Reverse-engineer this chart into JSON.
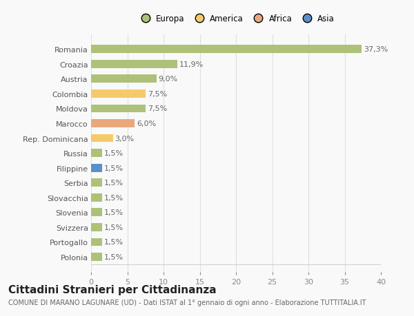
{
  "categories": [
    "Romania",
    "Croazia",
    "Austria",
    "Colombia",
    "Moldova",
    "Marocco",
    "Rep. Dominicana",
    "Russia",
    "Filippine",
    "Serbia",
    "Slovacchia",
    "Slovenia",
    "Svizzera",
    "Portogallo",
    "Polonia"
  ],
  "values": [
    37.3,
    11.9,
    9.0,
    7.5,
    7.5,
    6.0,
    3.0,
    1.5,
    1.5,
    1.5,
    1.5,
    1.5,
    1.5,
    1.5,
    1.5
  ],
  "labels": [
    "37,3%",
    "11,9%",
    "9,0%",
    "7,5%",
    "7,5%",
    "6,0%",
    "3,0%",
    "1,5%",
    "1,5%",
    "1,5%",
    "1,5%",
    "1,5%",
    "1,5%",
    "1,5%",
    "1,5%"
  ],
  "colors": [
    "#adc178",
    "#adc178",
    "#adc178",
    "#f6c96b",
    "#adc178",
    "#e8a87c",
    "#f6c96b",
    "#adc178",
    "#5b8fc9",
    "#adc178",
    "#adc178",
    "#adc178",
    "#adc178",
    "#adc178",
    "#adc178"
  ],
  "legend_labels": [
    "Europa",
    "America",
    "Africa",
    "Asia"
  ],
  "legend_colors": [
    "#adc178",
    "#f6c96b",
    "#e8a87c",
    "#5b8fc9"
  ],
  "xlim": [
    0,
    40
  ],
  "xticks": [
    0,
    5,
    10,
    15,
    20,
    25,
    30,
    35,
    40
  ],
  "title": "Cittadini Stranieri per Cittadinanza",
  "subtitle": "COMUNE DI MARANO LAGUNARE (UD) - Dati ISTAT al 1° gennaio di ogni anno - Elaborazione TUTTITALIA.IT",
  "background_color": "#f9f9f9",
  "grid_color": "#e0e0e0",
  "bar_height": 0.55,
  "label_fontsize": 8,
  "ytick_fontsize": 8,
  "xtick_fontsize": 8,
  "title_fontsize": 11,
  "subtitle_fontsize": 7
}
